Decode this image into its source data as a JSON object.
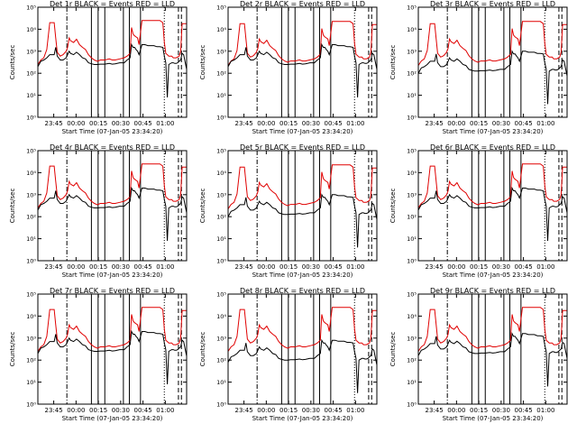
{
  "chart_data": {
    "type": "line",
    "grid_layout": "3x3",
    "yscale": "log",
    "ylim": [
      1,
      100000
    ],
    "ylabel": "Counts/sec",
    "xlabel": "Start Time (07-Jan-05 23:34:20)",
    "x_range_minutes": [
      0,
      100
    ],
    "xticks": [
      {
        "minute": 10.67,
        "label": "23:45"
      },
      {
        "minute": 25.67,
        "label": "00:00"
      },
      {
        "minute": 40.67,
        "label": "00:15"
      },
      {
        "minute": 55.67,
        "label": "00:30"
      },
      {
        "minute": 70.67,
        "label": "00:45"
      },
      {
        "minute": 85.67,
        "label": "01:00"
      }
    ],
    "yticks": [
      {
        "value": 1,
        "label": "10⁰"
      },
      {
        "value": 10,
        "label": "10¹"
      },
      {
        "value": 100,
        "label": "10²"
      },
      {
        "value": 1000,
        "label": "10³"
      },
      {
        "value": 10000,
        "label": "10⁴"
      },
      {
        "value": 100000,
        "label": "10⁵"
      }
    ],
    "series_names": [
      "Events",
      "LLD"
    ],
    "series_colors": {
      "events": "#000000",
      "lld": "#e00000"
    },
    "markers": [
      {
        "minute": 19.5,
        "style": "dashdot"
      },
      {
        "minute": 36.0,
        "style": "solid"
      },
      {
        "minute": 40.5,
        "style": "solid"
      },
      {
        "minute": 45.0,
        "style": "solid"
      },
      {
        "minute": 57.5,
        "style": "solid"
      },
      {
        "minute": 61.5,
        "style": "solid"
      },
      {
        "minute": 69.0,
        "style": "solid"
      },
      {
        "minute": 85.0,
        "style": "dotted"
      },
      {
        "minute": 94.5,
        "style": "dashed"
      },
      {
        "minute": 96.5,
        "style": "dashed"
      }
    ],
    "shared_series": {
      "x": [
        0,
        2,
        4,
        6,
        8,
        9,
        10,
        11,
        12,
        13,
        15,
        17,
        19,
        20,
        21,
        22,
        24,
        26,
        28,
        30,
        32,
        34,
        36,
        38,
        40,
        42,
        45,
        48,
        50,
        52,
        55,
        58,
        60,
        62,
        63,
        64,
        65,
        66,
        67,
        68,
        70,
        72,
        74,
        76,
        78,
        80,
        82,
        84,
        85,
        86,
        87,
        88,
        90,
        91,
        92,
        93,
        94,
        95,
        96,
        97,
        98,
        100
      ],
      "lld": [
        250,
        400,
        500,
        1200,
        20000,
        20000,
        20000,
        20000,
        4000,
        900,
        600,
        700,
        1000,
        1500,
        4000,
        3000,
        2500,
        3500,
        2000,
        1500,
        1200,
        700,
        500,
        400,
        350,
        400,
        400,
        450,
        400,
        400,
        450,
        500,
        600,
        800,
        12000,
        6000,
        5000,
        4500,
        4000,
        2000,
        25000,
        25000,
        25000,
        25000,
        25000,
        25000,
        25000,
        20000,
        2500,
        800,
        700,
        600,
        600,
        500,
        500,
        500,
        550,
        600,
        1000,
        18000,
        18000,
        18000
      ],
      "events": [
        200,
        350,
        400,
        500,
        700,
        700,
        700,
        700,
        1500,
        600,
        400,
        400,
        500,
        700,
        1000,
        800,
        700,
        900,
        700,
        500,
        450,
        300,
        270,
        250,
        250,
        260,
        260,
        280,
        260,
        270,
        300,
        300,
        400,
        500,
        2000,
        1500,
        1500,
        1200,
        1000,
        700,
        2000,
        2000,
        1800,
        1800,
        1800,
        1600,
        1600,
        1500,
        600,
        300,
        8,
        250,
        300,
        300,
        280,
        280,
        300,
        350,
        400,
        800,
        700,
        150
      ]
    },
    "panels": [
      {
        "title": "Det 1r BLACK = Events RED = LLD",
        "events_scale": 1.0,
        "lld_scale": 1.0
      },
      {
        "title": "Det 2r BLACK = Events RED = LLD",
        "events_scale": 1.0,
        "lld_scale": 0.9
      },
      {
        "title": "Det 3r BLACK = Events RED = LLD",
        "events_scale": 0.5,
        "lld_scale": 0.9
      },
      {
        "title": "Det 4r BLACK = Events RED = LLD",
        "events_scale": 1.0,
        "lld_scale": 1.0
      },
      {
        "title": "Det 5r BLACK = Events RED = LLD",
        "events_scale": 0.5,
        "lld_scale": 0.9
      },
      {
        "title": "Det 6r BLACK = Events RED = LLD",
        "events_scale": 1.0,
        "lld_scale": 1.0
      },
      {
        "title": "Det 7r BLACK = Events RED = LLD",
        "events_scale": 1.0,
        "lld_scale": 1.0
      },
      {
        "title": "Det 8r BLACK = Events RED = LLD",
        "events_scale": 0.4,
        "lld_scale": 1.0
      },
      {
        "title": "Det 9r BLACK = Events RED = LLD",
        "events_scale": 0.8,
        "lld_scale": 1.0
      }
    ]
  }
}
